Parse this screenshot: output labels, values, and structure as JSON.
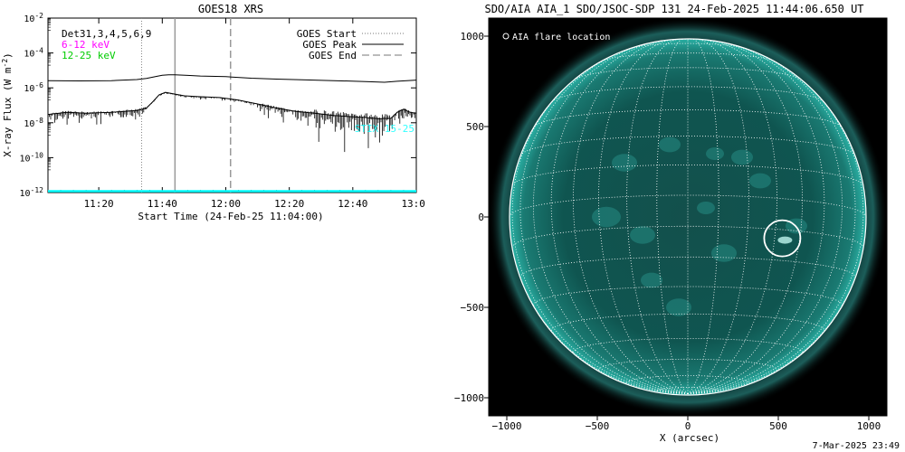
{
  "goes_panel": {
    "chart_data": {
      "type": "line",
      "title": "GOES18 XRS",
      "xlabel": "Start Time (24-Feb-25 11:04:00)",
      "ylabel": "X-ray Flux (W m^-2)",
      "ylabel_main": "X-ray Flux (W m",
      "ylabel_sup": "-2",
      "ylabel_close": ")",
      "scale": "log",
      "x_unit": "minutes after 11:04:00",
      "xlim": [
        0,
        116
      ],
      "ylim": [
        1e-12,
        0.01
      ],
      "x_ticks": [
        {
          "value": 16,
          "label": "11:20"
        },
        {
          "value": 36,
          "label": "11:40"
        },
        {
          "value": 56,
          "label": "12:00"
        },
        {
          "value": 76,
          "label": "12:20"
        },
        {
          "value": 96,
          "label": "12:40"
        },
        {
          "value": 116,
          "label": "13:00"
        }
      ],
      "y_ticks": [
        {
          "exp": -2,
          "base": "10",
          "sup": "-2"
        },
        {
          "exp": -4,
          "base": "10",
          "sup": "-4"
        },
        {
          "exp": -6,
          "base": "10",
          "sup": "-6"
        },
        {
          "exp": -8,
          "base": "10",
          "sup": "-8"
        },
        {
          "exp": -10,
          "base": "10",
          "sup": "-10"
        },
        {
          "exp": -12,
          "base": "10",
          "sup": "-12"
        }
      ],
      "legend_left": [
        {
          "label": "Det31,3,4,5,6,9",
          "color": "#000000"
        },
        {
          "label": "6-12 keV",
          "color": "#ff00ff"
        },
        {
          "label": "12-25 keV",
          "color": "#00cc00"
        }
      ],
      "legend_right": [
        {
          "label": "GOES Start",
          "style": "dotted"
        },
        {
          "label": "GOES Peak",
          "style": "solid"
        },
        {
          "label": "GOES End",
          "style": "dashed"
        }
      ],
      "event_lines": {
        "start": 29.5,
        "peak": 40,
        "end": 57.5
      },
      "inline_label": "STIX 15-25",
      "series": [
        {
          "color": "#000000",
          "x": [
            0,
            10,
            20,
            28,
            31,
            34,
            36,
            38,
            40,
            44,
            48,
            56,
            64,
            72,
            80,
            90,
            100,
            106,
            110,
            113,
            116
          ],
          "y": [
            2.6e-06,
            2.5e-06,
            2.6e-06,
            3e-06,
            3.5e-06,
            4.5e-06,
            5.3e-06,
            5.6e-06,
            5.6e-06,
            5.2e-06,
            4.8e-06,
            4.4e-06,
            3.6e-06,
            3.2e-06,
            2.9e-06,
            2.6e-06,
            2.3e-06,
            2.1e-06,
            2.4e-06,
            2.6e-06,
            2.8e-06
          ]
        },
        {
          "color": "#000000",
          "x": [
            0,
            6,
            12,
            20,
            28,
            31,
            33,
            35,
            37,
            40,
            43,
            48,
            54,
            60,
            66,
            72,
            78,
            84,
            90,
            96,
            100,
            104,
            108,
            110,
            112,
            114,
            116
          ],
          "y": [
            3e-08,
            4e-08,
            3.5e-08,
            4e-08,
            5e-08,
            7e-08,
            1.6e-07,
            4e-07,
            5.5e-07,
            4.4e-07,
            3.5e-07,
            3.1e-07,
            2.8e-07,
            2e-07,
            1.2e-07,
            7e-08,
            4.5e-08,
            3.5e-08,
            2.6e-08,
            2.2e-08,
            2e-08,
            1.7e-08,
            1.8e-08,
            4e-08,
            6e-08,
            4e-08,
            3.5e-08
          ]
        },
        {
          "color": "#00ffff",
          "x": [
            0,
            116
          ],
          "y": [
            1.2e-12,
            1.2e-12
          ]
        }
      ]
    }
  },
  "aia_panel": {
    "chart_data": {
      "type": "scatter",
      "title": "SDO/AIA AIA_1 SDO/JSOC-SDP 131 24-Feb-2025 11:44:06.650 UT",
      "xlabel": "X (arcsec)",
      "ylabel": "",
      "xlim": [
        -1100,
        1100
      ],
      "ylim": [
        -1100,
        1100
      ],
      "x_ticks": [
        -1000,
        -500,
        0,
        500,
        1000
      ],
      "y_ticks": [
        -1000,
        -500,
        0,
        500,
        1000
      ],
      "tick_labels_x": [
        "−1000",
        "−500",
        "0",
        "500",
        "1000"
      ],
      "tick_labels_y": [
        "−1000",
        "−500",
        "0",
        "500",
        "1000"
      ],
      "legend": "AIA flare location",
      "solar_radius_arcsec": 985,
      "flare_location": {
        "x": 522,
        "y": -118,
        "radius": 100
      },
      "grid_color": "#ffffff",
      "disk_color": "#0e5a55"
    }
  },
  "footer": {
    "timestamp": "7-Mar-2025 23:49"
  }
}
